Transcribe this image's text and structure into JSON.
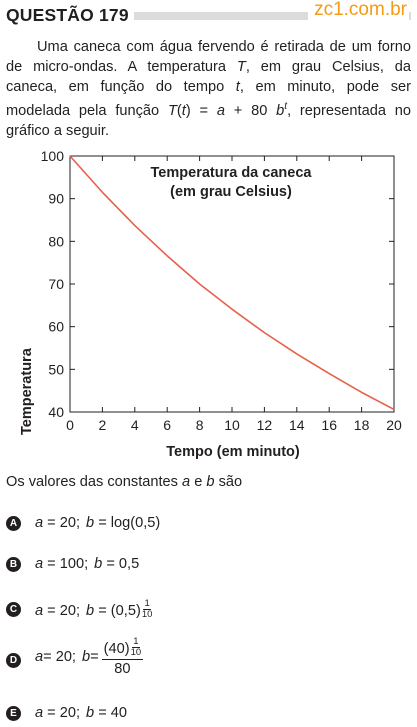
{
  "header": {
    "question_label": "QUESTÃO 179",
    "site": "zc1.com.br"
  },
  "stem": {
    "p1": "Uma caneca com água fervendo é retirada de um forno de micro-ondas. A temperatura ",
    "var_T": "T",
    "p2": ", em grau Celsius, da caneca, em função do tempo ",
    "var_t": "t",
    "p3": ", em minuto, pode ser modelada pela função ",
    "func_T": "T",
    "func_open": "(",
    "func_t": "t",
    "func_rest": ") = ",
    "func_a": "a",
    "func_plus": " + 80 ",
    "func_b": "b",
    "func_exp": "t",
    "p4": ", representada no gráfico a seguir."
  },
  "chart_data": {
    "type": "line",
    "title_line1": "Temperatura da caneca",
    "title_line2": "(em grau Celsius)",
    "xlabel": "Tempo (em minuto)",
    "ylabel": "Temperatura",
    "xlim": [
      0,
      20
    ],
    "ylim": [
      40,
      100
    ],
    "x_ticks": [
      "0",
      "2",
      "4",
      "6",
      "8",
      "10",
      "12",
      "14",
      "16",
      "18",
      "20"
    ],
    "y_ticks": [
      "40",
      "50",
      "60",
      "70",
      "80",
      "90",
      "100"
    ],
    "grid": false,
    "line_color": "#e8604c",
    "series": [
      {
        "x": [
          0,
          2,
          4,
          6,
          8,
          10,
          12,
          14,
          16,
          18,
          20
        ],
        "y": [
          100,
          91.5,
          83.7,
          76.6,
          70.0,
          64.1,
          58.6,
          53.6,
          49.0,
          44.6,
          40.6
        ]
      }
    ]
  },
  "question": {
    "prompt_pre": "Os valores das constantes ",
    "a": "a",
    "mid": " e ",
    "b": "b",
    "post": " são"
  },
  "options": [
    {
      "letter": "A",
      "a_var": "a",
      "a_eq": " = 20;",
      "b_var": "b",
      "b_eq": " = log(0,5)"
    },
    {
      "letter": "B",
      "a_var": "a",
      "a_eq": " = 100;",
      "b_var": "b",
      "b_eq": " = 0,5"
    },
    {
      "letter": "C",
      "a_var": "a",
      "a_eq": " = 20;",
      "b_var": "b",
      "b_eq": " = (0,5)",
      "exp_num": "1",
      "exp_den": "10"
    },
    {
      "letter": "D",
      "a_var": "a",
      "a_eq": " = 20;",
      "b_var": "b",
      "b_eq": " = ",
      "frac_num_base": "(40)",
      "exp_num": "1",
      "exp_den": "10",
      "frac_den": "80"
    },
    {
      "letter": "E",
      "a_var": "a",
      "a_eq": " = 20;",
      "b_var": "b",
      "b_eq": " = 40"
    }
  ]
}
